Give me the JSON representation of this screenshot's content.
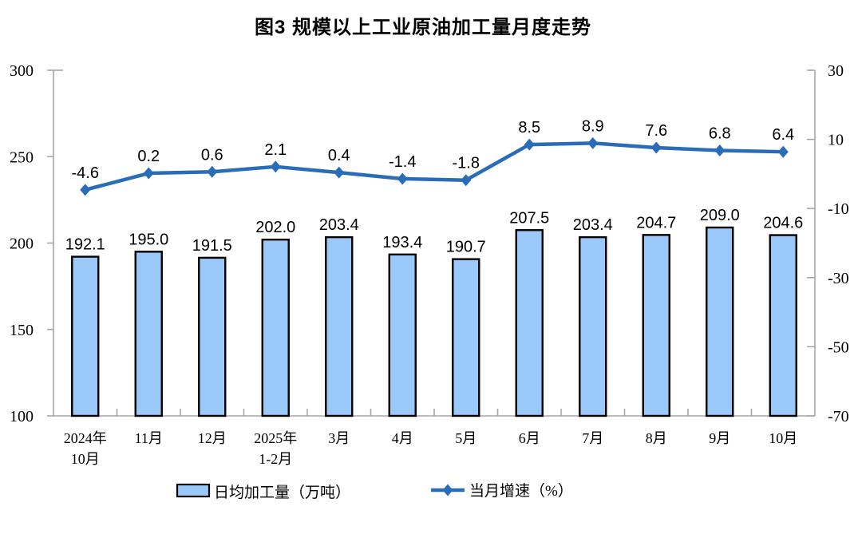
{
  "chart_data": {
    "type": "bar+line",
    "title": "图3 规模以上工业原油加工量月度走势",
    "categories": [
      "2024年\n10月",
      "11月",
      "12月",
      "2025年\n1-2月",
      "3月",
      "4月",
      "5月",
      "6月",
      "7月",
      "8月",
      "9月",
      "10月"
    ],
    "series": [
      {
        "name": "日均加工量（万吨）",
        "type": "bar",
        "axis": "left",
        "values": [
          192.1,
          195.0,
          191.5,
          202.0,
          203.4,
          193.4,
          190.7,
          207.5,
          203.4,
          204.7,
          209.0,
          204.6
        ],
        "fill_color": "#9AC8F8",
        "border_color": "#000000"
      },
      {
        "name": "当月增速（%）",
        "type": "line",
        "axis": "right",
        "marker": "diamond",
        "values": [
          -4.6,
          0.2,
          0.6,
          2.1,
          0.4,
          -1.4,
          -1.8,
          8.5,
          8.9,
          7.6,
          6.8,
          6.4
        ],
        "color": "#2B6CB8"
      }
    ],
    "left_axis": {
      "min": 100,
      "max": 300,
      "ticks": [
        300,
        250,
        200,
        150,
        100
      ]
    },
    "right_axis": {
      "min": -70,
      "max": 30,
      "ticks": [
        30,
        10,
        -10,
        -30,
        -50,
        -70
      ]
    },
    "axis_color": "#A6A6A6",
    "background_color": "#FFFFFF",
    "grid": false,
    "legend_position": "bottom",
    "legend": [
      {
        "label": "日均加工量（万吨）",
        "swatch": "bar"
      },
      {
        "label": "当月增速（%）",
        "swatch": "line"
      }
    ]
  }
}
